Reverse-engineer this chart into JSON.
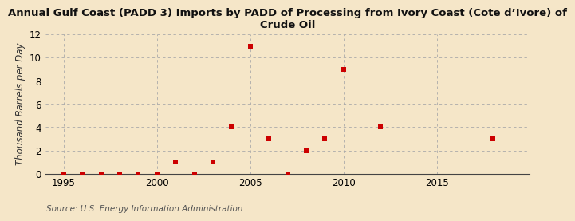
{
  "title_line1": "Annual Gulf Coast (PADD 3) Imports by PADD of Processing from Ivory Coast (Cote d’Ivore) of",
  "title_line2": "Crude Oil",
  "ylabel": "Thousand Barrels per Day",
  "source": "Source: U.S. Energy Information Administration",
  "background_color": "#f5e6c8",
  "plot_bg_color": "#f5e6c8",
  "marker_color": "#cc0000",
  "x_data": [
    1995,
    1996,
    1997,
    1998,
    1999,
    2000,
    2001,
    2002,
    2003,
    2004,
    2005,
    2006,
    2007,
    2008,
    2009,
    2010,
    2012,
    2018
  ],
  "y_data": [
    0,
    0,
    0,
    0,
    0,
    0,
    1,
    0,
    1,
    4,
    11,
    3,
    0,
    2,
    3,
    9,
    4,
    3
  ],
  "xlim": [
    1994,
    2020
  ],
  "ylim": [
    0,
    12
  ],
  "xticks": [
    1995,
    2000,
    2005,
    2010,
    2015
  ],
  "yticks": [
    0,
    2,
    4,
    6,
    8,
    10,
    12
  ],
  "grid_color": "#aaaaaa",
  "title_fontsize": 9.5,
  "axis_label_fontsize": 8.5,
  "tick_fontsize": 8.5,
  "source_fontsize": 7.5
}
